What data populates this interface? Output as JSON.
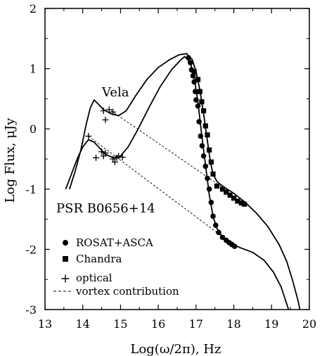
{
  "chart_data": {
    "type": "line",
    "xlabel": "Log(ω/2π), Hz",
    "ylabel": "Log Flux,  μJy",
    "xlim": [
      13,
      20
    ],
    "ylim": [
      -3,
      2
    ],
    "x_ticks": [
      13,
      14,
      15,
      16,
      17,
      18,
      19,
      20
    ],
    "y_ticks": [
      -3,
      -2,
      -1,
      0,
      1,
      2
    ],
    "x_tick_labels": [
      "13",
      "14",
      "15",
      "16",
      "17",
      "18",
      "19",
      "20"
    ],
    "y_tick_labels": [
      "-3",
      "-2",
      "-1",
      "0",
      "1",
      "2"
    ],
    "annotations": [
      {
        "text": "Vela",
        "x": 14.55,
        "y": 0.6
      },
      {
        "text": "PSR B0656+14",
        "x": 13.3,
        "y": -1.45
      }
    ],
    "legend": {
      "placement": "bottom-left",
      "entries": [
        {
          "marker": "circle",
          "text": "ROSAT+ASCA"
        },
        {
          "marker": "square",
          "text": "Chandra"
        },
        {
          "marker": "plus",
          "text": "optical"
        },
        {
          "marker": "dashed",
          "text": "vortex contribution"
        }
      ]
    },
    "series": [
      {
        "style": "solid",
        "points": [
          [
            13.65,
            -1.0
          ],
          [
            13.8,
            -0.7
          ],
          [
            13.95,
            -0.35
          ],
          [
            14.1,
            0.1
          ],
          [
            14.2,
            0.35
          ],
          [
            14.3,
            0.48
          ],
          [
            14.4,
            0.42
          ],
          [
            14.55,
            0.32
          ],
          [
            14.75,
            0.25
          ],
          [
            14.95,
            0.22
          ],
          [
            15.15,
            0.3
          ],
          [
            15.4,
            0.55
          ],
          [
            15.7,
            0.82
          ],
          [
            16.0,
            1.02
          ],
          [
            16.3,
            1.15
          ],
          [
            16.55,
            1.23
          ],
          [
            16.75,
            1.25
          ],
          [
            16.9,
            1.15
          ],
          [
            17.0,
            0.95
          ],
          [
            17.1,
            0.65
          ],
          [
            17.2,
            0.25
          ],
          [
            17.3,
            -0.2
          ],
          [
            17.38,
            -0.55
          ],
          [
            17.45,
            -0.75
          ],
          [
            17.55,
            -0.87
          ],
          [
            17.7,
            -0.95
          ],
          [
            18.0,
            -1.07
          ],
          [
            18.3,
            -1.22
          ],
          [
            18.6,
            -1.4
          ],
          [
            18.9,
            -1.62
          ],
          [
            19.2,
            -1.92
          ],
          [
            19.4,
            -2.2
          ],
          [
            19.55,
            -2.5
          ],
          [
            19.7,
            -2.85
          ],
          [
            19.75,
            -3.0
          ]
        ]
      },
      {
        "style": "solid",
        "points": [
          [
            13.55,
            -1.0
          ],
          [
            13.7,
            -0.75
          ],
          [
            13.85,
            -0.5
          ],
          [
            14.0,
            -0.3
          ],
          [
            14.15,
            -0.18
          ],
          [
            14.3,
            -0.22
          ],
          [
            14.45,
            -0.32
          ],
          [
            14.6,
            -0.42
          ],
          [
            14.8,
            -0.48
          ],
          [
            15.0,
            -0.45
          ],
          [
            15.2,
            -0.3
          ],
          [
            15.45,
            -0.02
          ],
          [
            15.75,
            0.35
          ],
          [
            16.05,
            0.7
          ],
          [
            16.35,
            0.98
          ],
          [
            16.6,
            1.15
          ],
          [
            16.7,
            1.2
          ],
          [
            16.85,
            1.1
          ],
          [
            16.95,
            0.85
          ],
          [
            17.05,
            0.45
          ],
          [
            17.15,
            -0.1
          ],
          [
            17.25,
            -0.6
          ],
          [
            17.35,
            -1.1
          ],
          [
            17.45,
            -1.45
          ],
          [
            17.55,
            -1.65
          ],
          [
            17.7,
            -1.8
          ],
          [
            17.9,
            -1.9
          ],
          [
            18.2,
            -1.98
          ],
          [
            18.5,
            -2.05
          ],
          [
            18.8,
            -2.18
          ],
          [
            19.05,
            -2.38
          ],
          [
            19.25,
            -2.62
          ],
          [
            19.45,
            -3.0
          ]
        ]
      },
      {
        "style": "dashed",
        "points": [
          [
            14.75,
            0.3
          ],
          [
            17.65,
            -0.95
          ]
        ]
      },
      {
        "style": "dashed",
        "points": [
          [
            14.15,
            -0.12
          ],
          [
            17.55,
            -1.72
          ]
        ]
      }
    ],
    "markers": {
      "circle": [
        [
          16.8,
          1.18
        ],
        [
          16.85,
          1.1
        ],
        [
          16.88,
          0.98
        ],
        [
          16.92,
          0.88
        ],
        [
          16.95,
          0.78
        ],
        [
          16.98,
          0.62
        ],
        [
          17.0,
          0.48
        ],
        [
          17.05,
          0.38
        ],
        [
          17.08,
          0.12
        ],
        [
          17.12,
          -0.12
        ],
        [
          17.16,
          -0.28
        ],
        [
          17.2,
          -0.45
        ],
        [
          17.25,
          -0.62
        ],
        [
          17.3,
          -0.82
        ],
        [
          17.35,
          -1.0
        ],
        [
          17.4,
          -1.22
        ],
        [
          17.45,
          -1.45
        ],
        [
          17.52,
          -1.6
        ],
        [
          17.6,
          -1.72
        ],
        [
          17.7,
          -1.8
        ],
        [
          17.8,
          -1.85
        ],
        [
          17.88,
          -1.89
        ],
        [
          17.95,
          -1.92
        ],
        [
          18.02,
          -1.95
        ]
      ],
      "square": [
        [
          16.95,
          0.95
        ],
        [
          17.05,
          0.82
        ],
        [
          17.1,
          0.62
        ],
        [
          17.15,
          0.45
        ],
        [
          17.2,
          0.3
        ],
        [
          17.25,
          0.05
        ],
        [
          17.3,
          -0.1
        ],
        [
          17.35,
          -0.35
        ],
        [
          17.4,
          -0.55
        ],
        [
          17.45,
          -0.75
        ],
        [
          17.55,
          -0.95
        ],
        [
          17.7,
          -1.0
        ],
        [
          17.8,
          -1.05
        ],
        [
          17.9,
          -1.1
        ],
        [
          18.0,
          -1.15
        ],
        [
          18.1,
          -1.2
        ],
        [
          18.2,
          -1.23
        ],
        [
          18.28,
          -1.25
        ]
      ],
      "plus": [
        [
          14.55,
          0.3
        ],
        [
          14.6,
          0.15
        ],
        [
          14.7,
          0.32
        ],
        [
          14.8,
          0.28
        ],
        [
          14.15,
          -0.12
        ],
        [
          14.5,
          -0.38
        ],
        [
          14.55,
          -0.45
        ],
        [
          14.6,
          -0.4
        ],
        [
          14.8,
          -0.5
        ],
        [
          14.85,
          -0.55
        ],
        [
          14.9,
          -0.48
        ],
        [
          14.95,
          -0.45
        ],
        [
          15.05,
          -0.47
        ],
        [
          14.35,
          -0.48
        ]
      ]
    }
  }
}
